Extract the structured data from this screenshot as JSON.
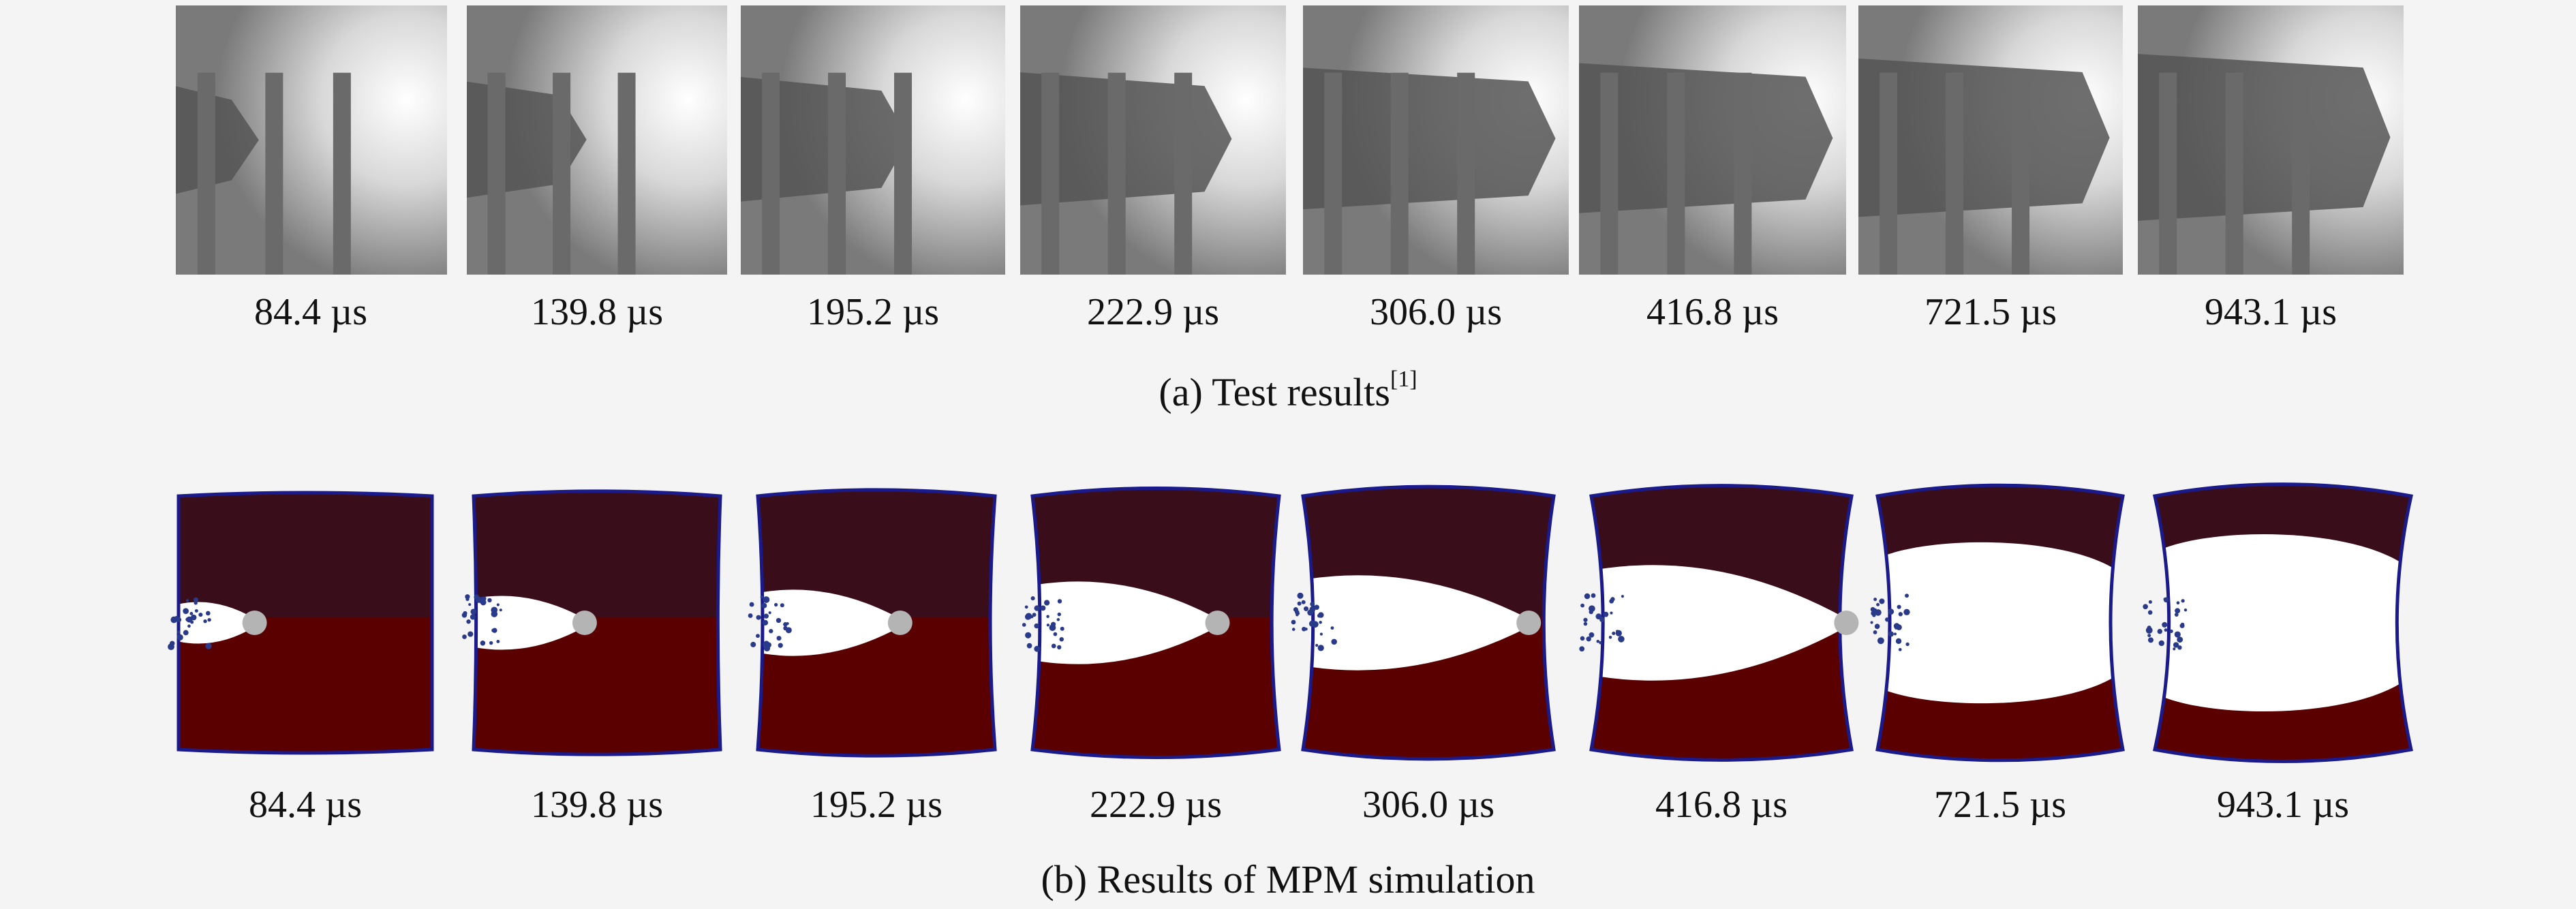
{
  "figure_a": {
    "caption_text": "(a) Test results",
    "caption_ref": "[1]",
    "frames": [
      {
        "time": "84.4 µs",
        "projectile_penetration": 0.08
      },
      {
        "time": "139.8 µs",
        "projectile_penetration": 0.3
      },
      {
        "time": "195.2 µs",
        "projectile_penetration": 0.55
      },
      {
        "time": "222.9 µs",
        "projectile_penetration": 0.78
      },
      {
        "time": "306.0 µs",
        "projectile_penetration": 1.0
      },
      {
        "time": "416.8 µs",
        "projectile_penetration": 1.0
      },
      {
        "time": "721.5 µs",
        "projectile_penetration": 1.0
      },
      {
        "time": "943.1 µs",
        "projectile_penetration": 1.0
      }
    ]
  },
  "figure_b": {
    "caption_text": "(b) Results of MPM simulation",
    "frames": [
      {
        "time": "84.4 µs",
        "cavity_length": 0.3,
        "cavity_half_height": 0.1,
        "bulge": 0.0
      },
      {
        "time": "139.8 µs",
        "cavity_length": 0.45,
        "cavity_half_height": 0.13,
        "bulge": 0.02
      },
      {
        "time": "195.2 µs",
        "cavity_length": 0.6,
        "cavity_half_height": 0.16,
        "bulge": 0.04
      },
      {
        "time": "222.9 µs",
        "cavity_length": 0.75,
        "cavity_half_height": 0.2,
        "bulge": 0.06
      },
      {
        "time": "306.0 µs",
        "cavity_length": 0.9,
        "cavity_half_height": 0.23,
        "bulge": 0.08
      },
      {
        "time": "416.8 µs",
        "cavity_length": 0.98,
        "cavity_half_height": 0.28,
        "bulge": 0.09
      },
      {
        "time": "721.5 µs",
        "cavity_length": 1.0,
        "cavity_half_height": 0.3,
        "bulge": 0.1
      },
      {
        "time": "943.1 µs",
        "cavity_length": 1.0,
        "cavity_half_height": 0.33,
        "bulge": 0.11
      }
    ]
  },
  "colors": {
    "background": "#f4f4f4",
    "medium_dark": "#5a0000",
    "medium_top": "#3a0d1a",
    "cavity": "#ffffff",
    "border": "#1a1a8a",
    "projectile": "#b4b4b4",
    "debris": "#2a3a8a"
  }
}
